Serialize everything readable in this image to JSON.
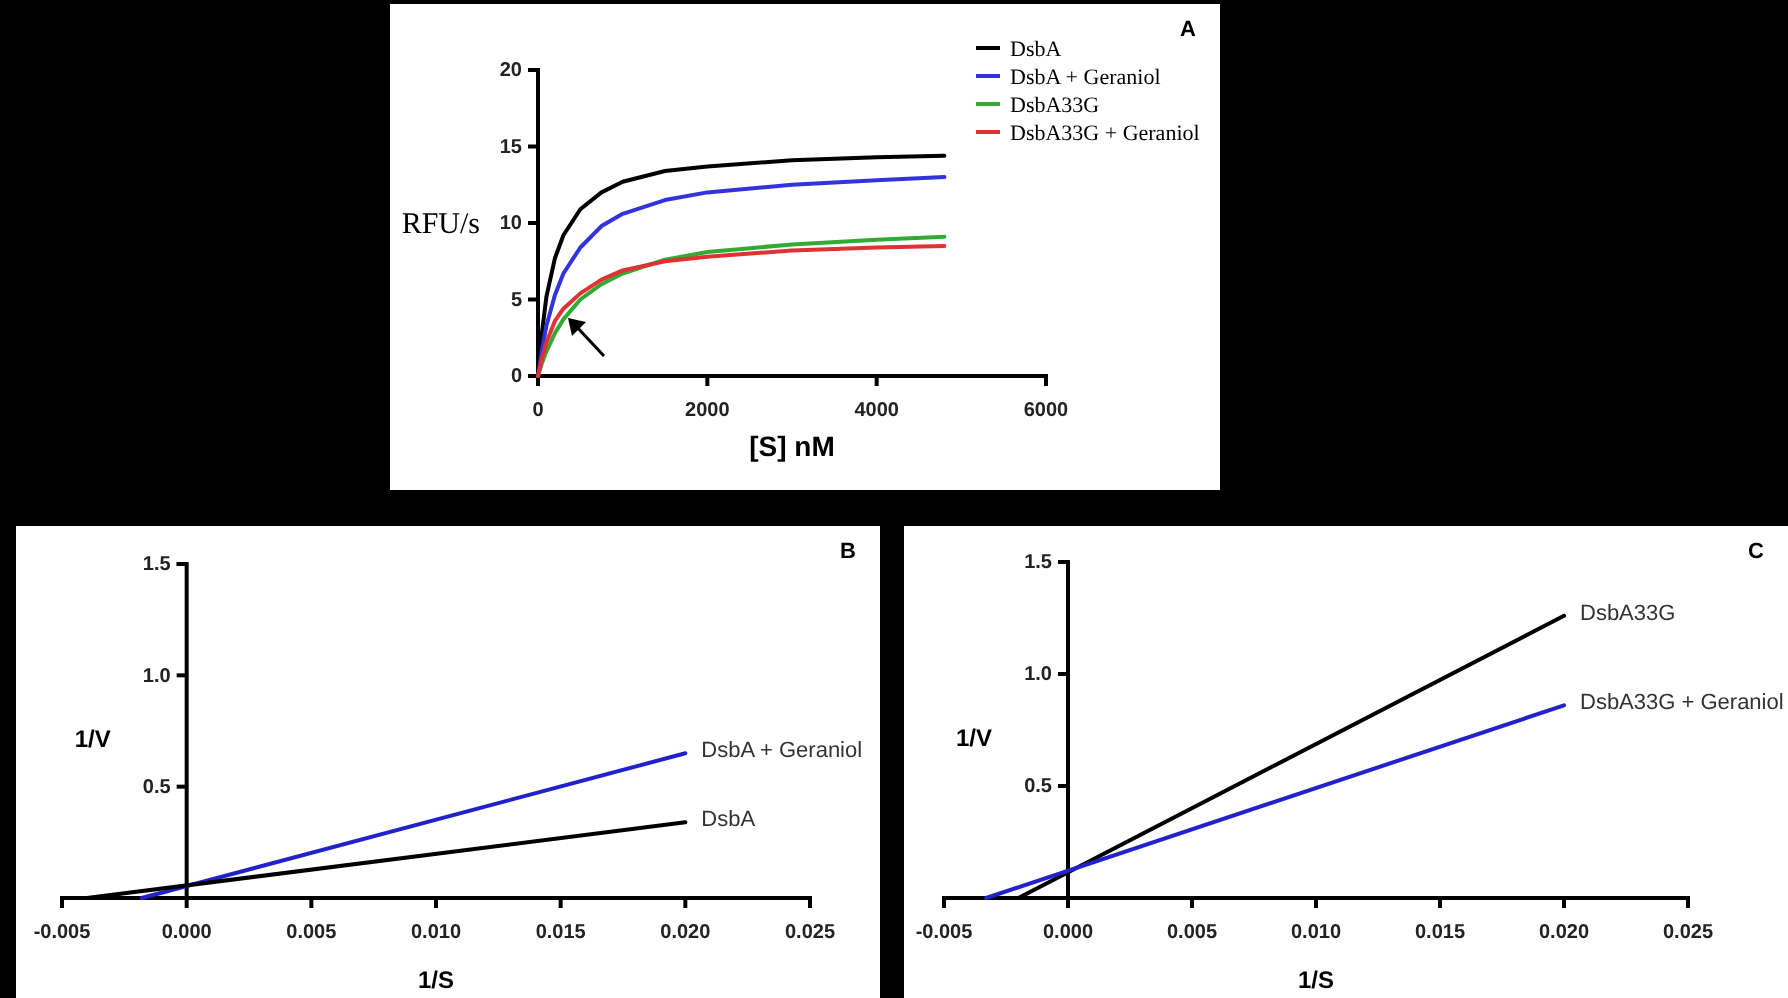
{
  "chart_data": [
    {
      "type": "line",
      "annotations": [
        "A"
      ],
      "xlabel": "[S] nM",
      "ylabel": "RFU/s",
      "xlim": [
        0,
        6000
      ],
      "xticks": [
        0,
        2000,
        4000,
        6000
      ],
      "ylim": [
        0,
        20
      ],
      "yticks": [
        0,
        5,
        10,
        15,
        20
      ],
      "legend": "right",
      "x": [
        0,
        50,
        100,
        200,
        300,
        500,
        750,
        1000,
        1500,
        2000,
        3000,
        4000,
        4800
      ],
      "series": [
        {
          "name": "DsbA",
          "color": "#000000",
          "values": [
            0,
            3,
            5.2,
            7.7,
            9.2,
            10.9,
            12,
            12.7,
            13.4,
            13.7,
            14.1,
            14.3,
            14.4
          ]
        },
        {
          "name": "DsbA + Geraniol",
          "color": "#3333dd",
          "values": [
            0,
            1.8,
            3.3,
            5.3,
            6.7,
            8.4,
            9.8,
            10.6,
            11.5,
            12,
            12.5,
            12.8,
            13
          ]
        },
        {
          "name": "DsbA33G",
          "color": "#33aa33",
          "values": [
            0,
            0.9,
            1.6,
            2.8,
            3.7,
            5,
            6,
            6.7,
            7.6,
            8.1,
            8.6,
            8.9,
            9.1
          ]
        },
        {
          "name": "DsbA33G + Geraniol",
          "color": "#dd3333",
          "values": [
            0,
            1.2,
            2.2,
            3.6,
            4.4,
            5.4,
            6.3,
            6.9,
            7.5,
            7.8,
            8.2,
            8.4,
            8.5
          ]
        }
      ]
    },
    {
      "type": "line",
      "annotations": [
        "B"
      ],
      "xlabel": "1/S",
      "ylabel": "1/V",
      "xlim": [
        -0.005,
        0.025
      ],
      "xticks": [
        {
          "value": -0.005,
          "label": "-0.005"
        },
        {
          "value": 0,
          "label": "0.000"
        },
        {
          "value": 0.005,
          "label": "0.005"
        },
        {
          "value": 0.01,
          "label": "0.010"
        },
        {
          "value": 0.015,
          "label": "0.015"
        },
        {
          "value": 0.02,
          "label": "0.020"
        },
        {
          "value": 0.025,
          "label": "0.025"
        }
      ],
      "ylim": [
        0,
        1.5
      ],
      "yticks": [
        0.5,
        {
          "value": 1,
          "label": "1.0"
        },
        1.5
      ],
      "legend": false,
      "series": [
        {
          "name": "DsbA + Geraniol",
          "color": "#2222cc",
          "x": [
            -0.0018,
            0.02
          ],
          "values": [
            0,
            0.65
          ]
        },
        {
          "name": "DsbA",
          "color": "#000000",
          "x": [
            -0.004,
            0.02
          ],
          "values": [
            0,
            0.34
          ]
        }
      ]
    },
    {
      "type": "line",
      "annotations": [
        "C"
      ],
      "xlabel": "1/S",
      "ylabel": "1/V",
      "xlim": [
        -0.005,
        0.025
      ],
      "xticks": [
        {
          "value": -0.005,
          "label": "-0.005"
        },
        {
          "value": 0,
          "label": "0.000"
        },
        {
          "value": 0.005,
          "label": "0.005"
        },
        {
          "value": 0.01,
          "label": "0.010"
        },
        {
          "value": 0.015,
          "label": "0.015"
        },
        {
          "value": 0.02,
          "label": "0.020"
        },
        {
          "value": 0.025,
          "label": "0.025"
        }
      ],
      "ylim": [
        0,
        1.5
      ],
      "yticks": [
        0.5,
        {
          "value": 1,
          "label": "1.0"
        },
        1.5
      ],
      "legend": false,
      "series": [
        {
          "name": "DsbA33G",
          "color": "#000000",
          "x": [
            -0.002,
            0.02
          ],
          "values": [
            0,
            1.26
          ]
        },
        {
          "name": "DsbA33G + Geraniol",
          "color": "#2222cc",
          "x": [
            -0.0033,
            0.02
          ],
          "values": [
            0,
            0.86
          ]
        }
      ]
    }
  ]
}
